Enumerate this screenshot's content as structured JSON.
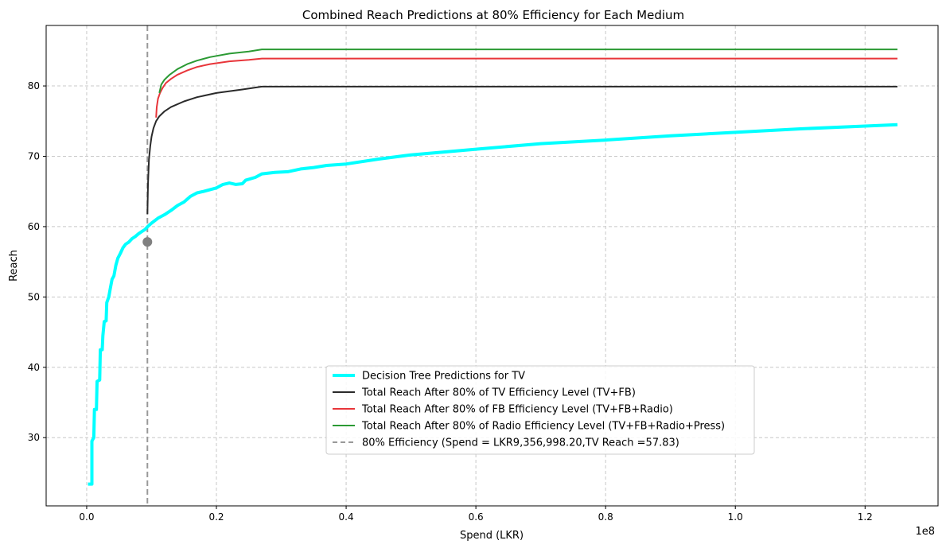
{
  "chart_data": {
    "type": "line",
    "title": "Combined Reach Predictions at 80% Efficiency for Each Medium",
    "xlabel": "Spend (LKR)",
    "ylabel": "Reach",
    "x_offset_label": "1e8",
    "xlim": [
      -0.0625,
      1.3125
    ],
    "ylim": [
      20.3,
      88.6
    ],
    "x_unit_note": "x values in units of 1e8 LKR",
    "xticks": [
      0.0,
      0.2,
      0.4,
      0.6,
      0.8,
      1.0,
      1.2
    ],
    "xtick_labels": [
      "0.0",
      "0.2",
      "0.4",
      "0.6",
      "0.8",
      "1.0",
      "1.2"
    ],
    "yticks": [
      30,
      40,
      50,
      60,
      70,
      80
    ],
    "ytick_labels": [
      "30",
      "40",
      "50",
      "60",
      "70",
      "80"
    ],
    "grid": true,
    "legend_position": "lower-center",
    "series": [
      {
        "name": "Decision Tree Predictions for TV",
        "color": "#00ffff",
        "style": "thick",
        "points": [
          [
            0.002,
            23.4
          ],
          [
            0.008,
            23.4
          ],
          [
            0.008,
            29.5
          ],
          [
            0.011,
            30
          ],
          [
            0.012,
            34
          ],
          [
            0.015,
            34
          ],
          [
            0.016,
            38
          ],
          [
            0.02,
            38.2
          ],
          [
            0.021,
            42.5
          ],
          [
            0.024,
            42.5
          ],
          [
            0.025,
            44.5
          ],
          [
            0.027,
            46.5
          ],
          [
            0.03,
            46.6
          ],
          [
            0.031,
            49.2
          ],
          [
            0.034,
            50
          ],
          [
            0.036,
            51
          ],
          [
            0.039,
            52.5
          ],
          [
            0.042,
            53
          ],
          [
            0.045,
            54.5
          ],
          [
            0.048,
            55.5
          ],
          [
            0.052,
            56.2
          ],
          [
            0.056,
            57
          ],
          [
            0.06,
            57.5
          ],
          [
            0.065,
            57.8
          ],
          [
            0.07,
            58.3
          ],
          [
            0.075,
            58.6
          ],
          [
            0.08,
            59
          ],
          [
            0.085,
            59.3
          ],
          [
            0.09,
            59.6
          ],
          [
            0.094,
            60
          ],
          [
            0.1,
            60.5
          ],
          [
            0.11,
            61.2
          ],
          [
            0.12,
            61.7
          ],
          [
            0.13,
            62.3
          ],
          [
            0.14,
            63
          ],
          [
            0.15,
            63.5
          ],
          [
            0.16,
            64.3
          ],
          [
            0.17,
            64.8
          ],
          [
            0.18,
            65
          ],
          [
            0.2,
            65.5
          ],
          [
            0.21,
            66
          ],
          [
            0.22,
            66.2
          ],
          [
            0.23,
            66
          ],
          [
            0.24,
            66.1
          ],
          [
            0.245,
            66.6
          ],
          [
            0.26,
            67
          ],
          [
            0.27,
            67.5
          ],
          [
            0.29,
            67.7
          ],
          [
            0.31,
            67.8
          ],
          [
            0.33,
            68.2
          ],
          [
            0.35,
            68.4
          ],
          [
            0.37,
            68.7
          ],
          [
            0.4,
            68.9
          ],
          [
            0.45,
            69.6
          ],
          [
            0.5,
            70.2
          ],
          [
            0.6,
            71
          ],
          [
            0.7,
            71.8
          ],
          [
            0.8,
            72.3
          ],
          [
            0.9,
            72.9
          ],
          [
            1.0,
            73.4
          ],
          [
            1.1,
            73.9
          ],
          [
            1.2,
            74.3
          ],
          [
            1.25,
            74.5
          ]
        ]
      },
      {
        "name": "Total Reach After 80% of TV Efficiency Level (TV+FB)",
        "color": "#2a2a2a",
        "style": "normal",
        "points": [
          [
            0.0936,
            61.8
          ],
          [
            0.0945,
            66
          ],
          [
            0.096,
            69.5
          ],
          [
            0.098,
            71.5
          ],
          [
            0.1,
            72.8
          ],
          [
            0.103,
            74
          ],
          [
            0.107,
            75
          ],
          [
            0.112,
            75.7
          ],
          [
            0.12,
            76.4
          ],
          [
            0.13,
            77
          ],
          [
            0.15,
            77.8
          ],
          [
            0.17,
            78.4
          ],
          [
            0.2,
            79
          ],
          [
            0.24,
            79.5
          ],
          [
            0.27,
            79.9
          ],
          [
            1.25,
            79.9
          ]
        ]
      },
      {
        "name": "Total Reach After 80% of FB Efficiency Level (TV+FB+Radio)",
        "color": "#e8353a",
        "style": "normal",
        "points": [
          [
            0.107,
            75.5
          ],
          [
            0.108,
            77
          ],
          [
            0.11,
            78.2
          ],
          [
            0.113,
            79
          ],
          [
            0.117,
            79.7
          ],
          [
            0.122,
            80.4
          ],
          [
            0.13,
            81
          ],
          [
            0.14,
            81.6
          ],
          [
            0.155,
            82.2
          ],
          [
            0.17,
            82.7
          ],
          [
            0.19,
            83.1
          ],
          [
            0.22,
            83.5
          ],
          [
            0.25,
            83.7
          ],
          [
            0.27,
            83.9
          ],
          [
            1.25,
            83.9
          ]
        ]
      },
      {
        "name": "Total Reach After 80% of Radio Efficiency Level (TV+FB+Radio+Press)",
        "color": "#2b9a34",
        "style": "normal",
        "points": [
          [
            0.112,
            79
          ],
          [
            0.115,
            80.2
          ],
          [
            0.12,
            80.9
          ],
          [
            0.128,
            81.6
          ],
          [
            0.14,
            82.4
          ],
          [
            0.155,
            83.1
          ],
          [
            0.17,
            83.6
          ],
          [
            0.19,
            84.1
          ],
          [
            0.22,
            84.6
          ],
          [
            0.25,
            84.9
          ],
          [
            0.27,
            85.2
          ],
          [
            1.25,
            85.2
          ]
        ]
      }
    ],
    "reference_line": {
      "name": "80% Efficiency (Spend = LKR9,356,998.20,TV Reach =57.83)",
      "x": 0.0936,
      "color": "#999999",
      "style": "dashed"
    },
    "marker": {
      "x": 0.0936,
      "y": 57.83,
      "color": "#808080"
    }
  }
}
